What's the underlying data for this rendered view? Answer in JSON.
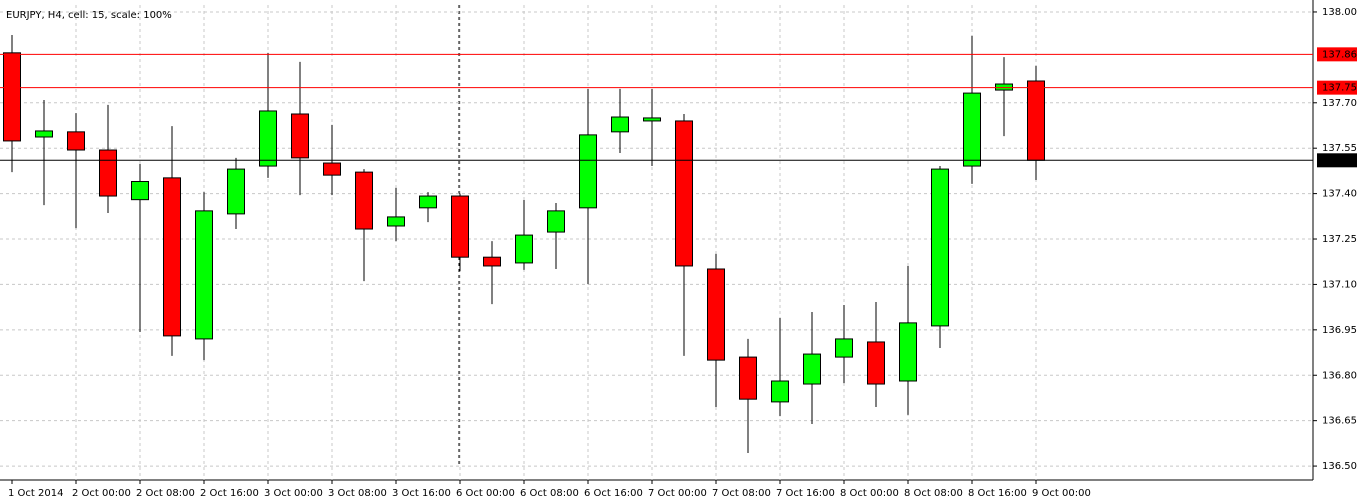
{
  "chart_data": {
    "type": "candlestick",
    "title": "EURJPY, H4, cell: 15, scale: 100%",
    "categories": [
      "1 Oct 2014",
      null,
      "2 Oct 00:00",
      null,
      "2 Oct 08:00",
      null,
      "2 Oct 16:00",
      null,
      "3 Oct 00:00",
      null,
      "3 Oct 08:00",
      null,
      "3 Oct 16:00",
      null,
      "6 Oct 00:00",
      null,
      "6 Oct 08:00",
      null,
      "6 Oct 16:00",
      null,
      "7 Oct 00:00",
      null,
      "7 Oct 08:00",
      null,
      "7 Oct 16:00",
      null,
      "8 Oct 00:00",
      null,
      "8 Oct 08:00",
      null,
      "8 Oct 16:00",
      null,
      "9 Oct 00:00"
    ],
    "open": [
      137.865,
      137.587,
      137.604,
      137.544,
      137.38,
      137.452,
      136.92,
      137.333,
      137.491,
      137.663,
      137.501,
      137.471,
      137.293,
      137.353,
      137.392,
      137.19,
      137.171,
      137.273,
      137.353,
      137.604,
      137.64,
      137.64,
      137.151,
      136.86,
      136.712,
      136.771,
      136.86,
      136.91,
      136.781,
      136.963,
      137.491,
      137.742,
      137.772
    ],
    "high": [
      137.924,
      137.709,
      137.666,
      137.693,
      137.498,
      137.623,
      137.405,
      137.518,
      137.865,
      137.835,
      137.627,
      137.481,
      137.419,
      137.405,
      137.4,
      137.243,
      137.379,
      137.369,
      137.746,
      137.746,
      137.746,
      137.663,
      137.201,
      136.92,
      136.989,
      137.009,
      137.032,
      137.042,
      137.161,
      137.491,
      137.921,
      137.851,
      137.822
    ],
    "low": [
      137.471,
      137.362,
      137.286,
      137.336,
      136.943,
      136.864,
      136.85,
      137.283,
      137.452,
      137.395,
      137.395,
      137.111,
      137.243,
      137.306,
      137.144,
      137.035,
      137.148,
      137.151,
      137.101,
      137.534,
      137.491,
      136.864,
      136.695,
      136.543,
      136.665,
      136.639,
      136.774,
      136.695,
      136.669,
      136.89,
      137.432,
      137.59,
      137.445
    ],
    "close": [
      137.574,
      137.607,
      137.544,
      137.392,
      137.44,
      136.93,
      137.343,
      137.481,
      137.673,
      137.518,
      137.461,
      137.283,
      137.323,
      137.392,
      137.19,
      137.161,
      137.263,
      137.343,
      137.594,
      137.653,
      137.65,
      137.161,
      136.85,
      136.721,
      136.781,
      136.87,
      136.92,
      136.771,
      136.973,
      137.481,
      137.732,
      137.762,
      137.51
    ],
    "up_color": "#00ff00",
    "down_color": "#ff0000",
    "ylim": [
      136.454,
      138.023
    ],
    "yticks": [
      {
        "value": 136.5,
        "label": "136.50"
      },
      136.65,
      {
        "value": 136.8,
        "label": "136.80"
      },
      136.95,
      {
        "value": 137.1,
        "label": "137.10"
      },
      137.25,
      {
        "value": 137.4,
        "label": "137.40"
      },
      137.55,
      {
        "value": 137.7,
        "label": "137.70"
      },
      {
        "value": 138,
        "label": "138.00"
      }
    ],
    "grid": true,
    "hlines": [
      {
        "value": 137.86,
        "color": "#ff0000"
      },
      {
        "value": 137.75,
        "color": "#ff0000"
      },
      {
        "value": 137.51,
        "color": "#000000"
      }
    ]
  }
}
